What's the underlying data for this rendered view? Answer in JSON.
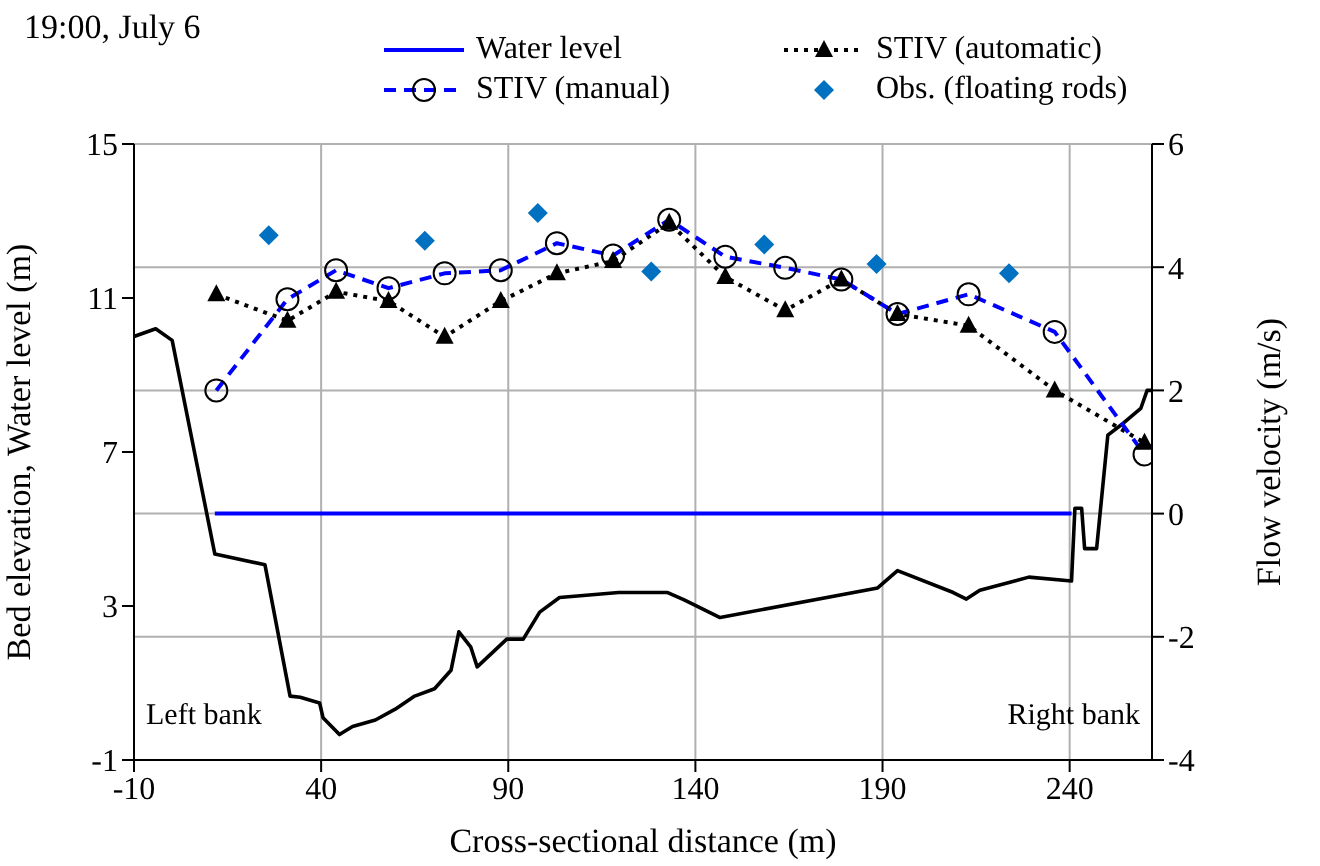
{
  "chart_data": {
    "type": "line",
    "title": "19:00, July 6",
    "xlabel": "Cross-sectional distance (m)",
    "ylabel": "Bed elevation, Water level (m)",
    "y2label": "Flow velocity (m/s)",
    "xlim": [
      -10,
      262
    ],
    "xticks": [
      -10,
      40,
      90,
      140,
      190,
      240
    ],
    "ylim": [
      -1,
      15
    ],
    "yticks": [
      -1,
      3,
      7,
      11,
      15
    ],
    "y2lim": [
      -4,
      6
    ],
    "y2ticks": [
      -4,
      -2,
      0,
      2,
      4,
      6
    ],
    "grid": true,
    "legend": "top",
    "annotations": [
      "Left bank",
      "Right bank"
    ],
    "series": [
      {
        "color": "#000000",
        "line_style": "solid",
        "marker": "none",
        "x": [
          -10,
          -4.2,
          0.2,
          11.6,
          25,
          31.7,
          34.4,
          39.6,
          40.5,
          44.9,
          48.4,
          54.5,
          59.8,
          65,
          70.3,
          74.7,
          76.8,
          80,
          81.7,
          89.6,
          94,
          98.4,
          103.7,
          119.5,
          132.6,
          137,
          146.6,
          188.7,
          194,
          208.9,
          212.4,
          216,
          229.1,
          240.5,
          241.4,
          243.2,
          244,
          247.2,
          250.2,
          254.5,
          259,
          260.7,
          262
        ],
        "values": [
          10.0,
          10.2,
          9.9,
          4.35,
          4.07,
          0.66,
          0.63,
          0.48,
          0.1,
          -0.34,
          -0.13,
          0.04,
          0.32,
          0.66,
          0.85,
          1.33,
          2.33,
          1.93,
          1.42,
          2.14,
          2.14,
          2.84,
          3.22,
          3.35,
          3.35,
          3.16,
          2.7,
          3.47,
          3.92,
          3.35,
          3.18,
          3.41,
          3.75,
          3.65,
          5.54,
          5.54,
          4.49,
          4.49,
          7.44,
          7.76,
          8.13,
          8.6,
          8.6
        ]
      },
      {
        "name": "Water level",
        "color": "#0000ff",
        "line_style": "solid",
        "marker": "none",
        "x": [
          11.6,
          240.5
        ],
        "values": [
          5.4,
          5.4
        ]
      },
      {
        "name": "STIV (automatic)",
        "axis": "y2",
        "color": "#000000",
        "line_style": "dotted",
        "marker": "triangle",
        "x": [
          12,
          31,
          44,
          58,
          73,
          88,
          103,
          118,
          133,
          148,
          164,
          179,
          194,
          213,
          236,
          260
        ],
        "values": [
          3.56,
          3.13,
          3.6,
          3.45,
          2.87,
          3.45,
          3.9,
          4.1,
          4.72,
          3.84,
          3.3,
          3.8,
          3.24,
          3.05,
          2.0,
          1.15
        ]
      },
      {
        "name": "STIV (manual)",
        "axis": "y2",
        "color": "#0000ff",
        "line_style": "dashed",
        "marker": "circle",
        "x": [
          12,
          31,
          44,
          58,
          73,
          88,
          103,
          118,
          133,
          148,
          164,
          179,
          194,
          213,
          236,
          260
        ],
        "values": [
          2.0,
          3.48,
          3.95,
          3.66,
          3.9,
          3.95,
          4.39,
          4.19,
          4.77,
          4.17,
          3.99,
          3.8,
          3.24,
          3.56,
          2.95,
          0.96
        ]
      },
      {
        "type": "scatter",
        "name": "Obs. (floating rods)",
        "axis": "y2",
        "color": "#0070c0",
        "marker": "diamond",
        "x": [
          26,
          67.7,
          97.9,
          128.2,
          158.4,
          188.4,
          223.8
        ],
        "values": [
          4.52,
          4.43,
          4.88,
          3.93,
          4.37,
          4.05,
          3.9
        ]
      }
    ]
  }
}
